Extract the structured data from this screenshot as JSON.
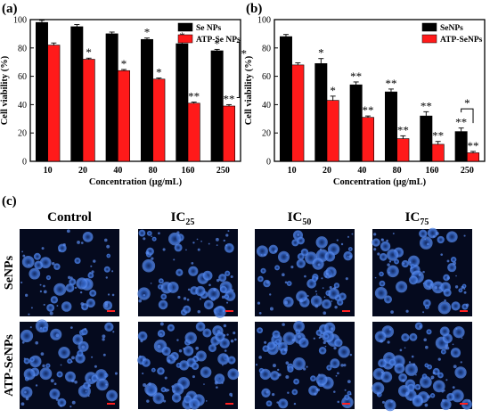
{
  "chart_data": [
    {
      "panel_label": "(a)",
      "type": "bar",
      "xlabel": "Concentration (μg/mL)",
      "ylabel": "Cell viability (%)",
      "ylim": [
        0,
        100
      ],
      "yticks": [
        "0",
        "20",
        "40",
        "60",
        "80",
        "100"
      ],
      "categories": [
        "10",
        "20",
        "40",
        "80",
        "160",
        "250"
      ],
      "legend_position": "top-right",
      "series": [
        {
          "name": "Se NPs",
          "color": "#000000",
          "values": [
            98,
            95,
            90,
            86,
            83,
            78
          ],
          "errors": [
            1.5,
            1.5,
            1.2,
            1.0,
            1.2,
            1.0
          ],
          "marks": [
            "",
            "",
            "",
            "*",
            "*",
            "*"
          ]
        },
        {
          "name": "ATP-Se NPs",
          "color": "#ff1a1a",
          "values": [
            82,
            72,
            64,
            58,
            41,
            39
          ],
          "errors": [
            1.5,
            0.8,
            0.8,
            0.8,
            0.8,
            1.0
          ],
          "marks": [
            "",
            "*",
            "*",
            "*",
            "**",
            "**"
          ]
        }
      ],
      "bracket_mark": "*"
    },
    {
      "panel_label": "(b)",
      "type": "bar",
      "xlabel": "Concentration (μg/mL)",
      "ylabel": "Cell viability (%)",
      "ylim": [
        0,
        100
      ],
      "yticks": [
        "0",
        "20",
        "40",
        "60",
        "80",
        "100"
      ],
      "categories": [
        "10",
        "20",
        "40",
        "80",
        "160",
        "250"
      ],
      "legend_position": "top-right",
      "series": [
        {
          "name": "SeNPs",
          "color": "#000000",
          "values": [
            88,
            69,
            54,
            49,
            32,
            21
          ],
          "errors": [
            1.5,
            3.5,
            2.0,
            2.0,
            3.0,
            2.5
          ],
          "marks": [
            "",
            "*",
            "**",
            "**",
            "**",
            "**"
          ]
        },
        {
          "name": "ATP-SeNPs",
          "color": "#ff1a1a",
          "values": [
            68,
            43,
            31,
            16,
            12,
            6
          ],
          "errors": [
            1.5,
            3.0,
            1.0,
            2.0,
            2.0,
            1.0
          ],
          "marks": [
            "",
            "*",
            "**",
            "**",
            "**",
            "**"
          ]
        }
      ],
      "bracket_mark": "*"
    }
  ],
  "micrographs": {
    "panel_label": "(c)",
    "columns": [
      "Control",
      "IC",
      "IC",
      "IC"
    ],
    "column_subscripts": [
      "",
      "25",
      "50",
      "75"
    ],
    "rows": [
      "SeNPs",
      "ATP-SeNPs"
    ],
    "background_color": "#050a1e",
    "cell_color": "#3f74d9",
    "scale_bar_color": "#ff2020"
  }
}
